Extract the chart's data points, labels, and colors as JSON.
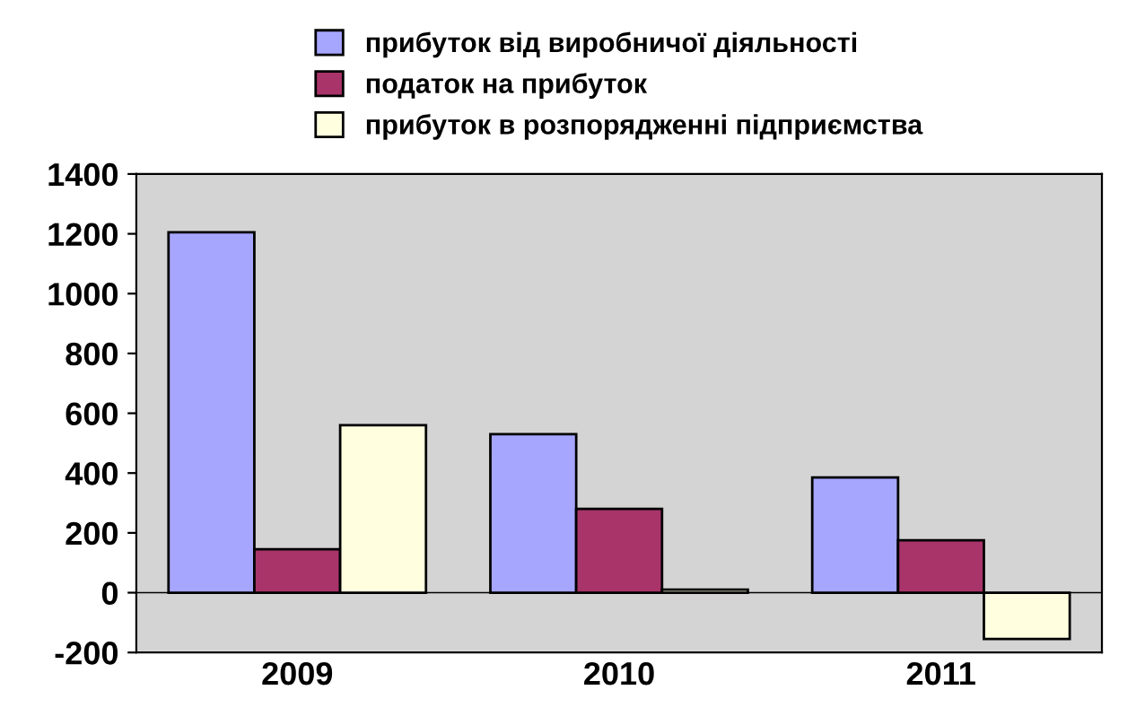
{
  "chart_data": {
    "type": "bar",
    "categories": [
      "2009",
      "2010",
      "2011"
    ],
    "series": [
      {
        "name": "прибуток від виробничої діяльності",
        "color": "#a6a6ff",
        "values": [
          1205,
          530,
          385
        ]
      },
      {
        "name": "податок на прибуток",
        "color": "#a8346a",
        "values": [
          145,
          280,
          175
        ]
      },
      {
        "name": "прибуток в розпорядженні підприємства",
        "color": "#ffffe0",
        "values": [
          560,
          10,
          -155
        ]
      }
    ],
    "ylim": [
      -200,
      1400
    ],
    "yticks": [
      -200,
      0,
      200,
      400,
      600,
      800,
      1000,
      1200,
      1400
    ],
    "legend": "top"
  }
}
